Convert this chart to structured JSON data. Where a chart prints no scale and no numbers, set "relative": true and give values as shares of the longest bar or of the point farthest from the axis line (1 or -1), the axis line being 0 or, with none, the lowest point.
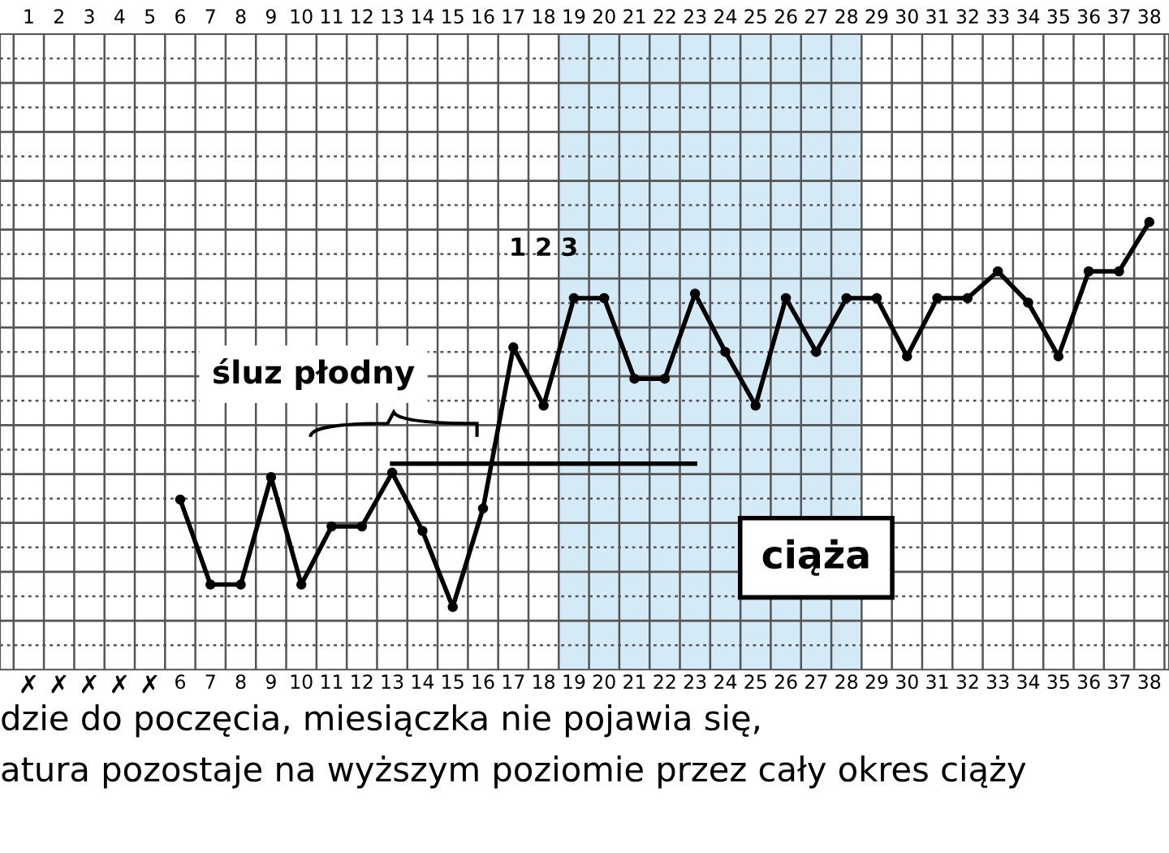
{
  "chart_data": {
    "type": "line",
    "relative": true,
    "grid": true,
    "marker": "circle",
    "line_style": "solid",
    "categories": [
      "1",
      "2",
      "3",
      "4",
      "5",
      "6",
      "7",
      "8",
      "9",
      "10",
      "11",
      "12",
      "13",
      "14",
      "15",
      "16",
      "17",
      "18",
      "19",
      "20",
      "21",
      "22",
      "23",
      "24",
      "25",
      "26",
      "27",
      "28",
      "29",
      "30",
      "31",
      "32",
      "33",
      "34",
      "35",
      "36",
      "37",
      "38"
    ],
    "series": [
      {
        "color": "#000000",
        "values": [
          null,
          null,
          null,
          null,
          null,
          0.38,
          0.19,
          0.19,
          0.43,
          0.19,
          0.32,
          0.32,
          0.44,
          0.31,
          0.14,
          0.36,
          0.72,
          0.59,
          0.83,
          0.83,
          0.65,
          0.65,
          0.84,
          0.71,
          0.59,
          0.83,
          0.71,
          0.83,
          0.83,
          0.7,
          0.83,
          0.83,
          0.89,
          0.82,
          0.7,
          0.89,
          0.89,
          1.0
        ]
      },
      {
        "color": "#000000",
        "marker": "none",
        "values": [
          null,
          null,
          null,
          null,
          null,
          null,
          null,
          null,
          null,
          null,
          null,
          null,
          0.46,
          0.46,
          0.46,
          0.46,
          0.46,
          0.46,
          0.46,
          0.46,
          0.46,
          0.46,
          0.46,
          null,
          null,
          null,
          null,
          null,
          null,
          null,
          null,
          null,
          null,
          null,
          null,
          null,
          null,
          null
        ]
      }
    ],
    "bands": [
      {
        "axis": "x",
        "from": "19",
        "to": "28",
        "color": "#d5eaf7"
      }
    ],
    "annotations": [
      "śluz płodny",
      "ciąża",
      "dzie do poczęcia, miesiączka nie pojawia się,",
      "atura pozostaje na wyższym poziomie przez cały okres ciąży",
      "1 2 3",
      "✗",
      "✗",
      "✗",
      "✗",
      "✗"
    ]
  }
}
